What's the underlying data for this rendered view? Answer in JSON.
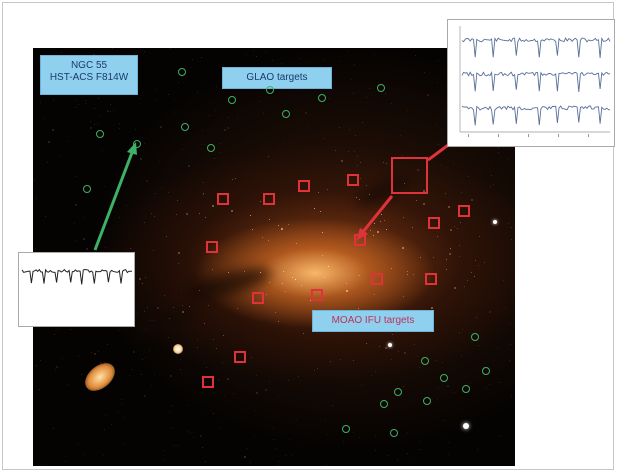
{
  "labels": {
    "ngc_title": "NGC 55",
    "ngc_subtitle": "HST-ACS F814W",
    "glao": "GLAO targets",
    "moad": "MOAO IFU targets"
  },
  "colors": {
    "glao_marker": "#3fb067",
    "moad_marker": "#e0323a",
    "label_bg": "#8fd0ef"
  },
  "icons": {
    "glao_marker": "green-circle-icon",
    "moad_marker": "red-square-icon"
  }
}
